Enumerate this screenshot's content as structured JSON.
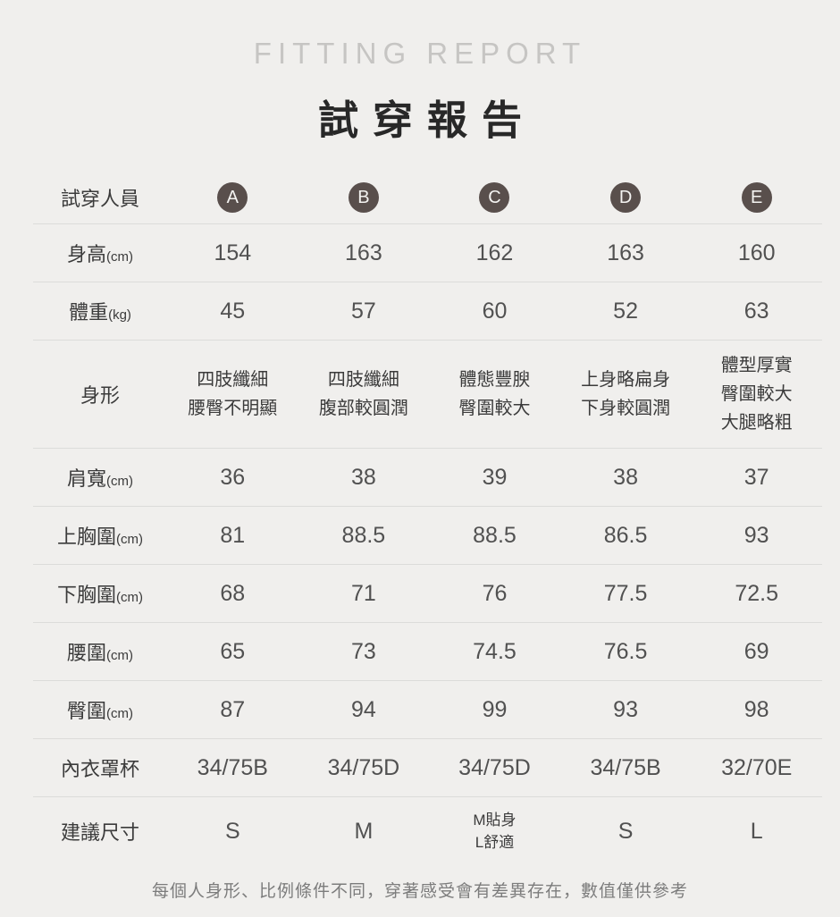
{
  "title": {
    "en": "FITTING REPORT",
    "zh": "試穿報告"
  },
  "colors": {
    "background": "#f0efed",
    "badge_circle": "#594f4c",
    "badge_letter": "#f4f3f1",
    "divider": "#dcdcda",
    "title_en_gray": "#c6c5c3",
    "title_zh_dark": "#282828",
    "label_text": "#3b3b3b",
    "value_text": "#515151",
    "footer_gray": "#7c7c7c"
  },
  "table": {
    "header": {
      "label": "試穿人員",
      "members": [
        "A",
        "B",
        "C",
        "D",
        "E"
      ]
    },
    "rows": [
      {
        "label": "身高",
        "unit": "(cm)",
        "values": [
          "154",
          "163",
          "162",
          "163",
          "160"
        ]
      },
      {
        "label": "體重",
        "unit": "(kg)",
        "values": [
          "45",
          "57",
          "60",
          "52",
          "63"
        ]
      },
      {
        "label": "身形",
        "unit": "",
        "values": [
          [
            "四肢纖細",
            "腰臀不明顯"
          ],
          [
            "四肢纖細",
            "腹部較圓潤"
          ],
          [
            "體態豐腴",
            "臀圍較大"
          ],
          [
            "上身略扁身",
            "下身較圓潤"
          ],
          [
            "體型厚實",
            "臀圍較大",
            "大腿略粗"
          ]
        ]
      },
      {
        "label": "肩寬",
        "unit": "(cm)",
        "values": [
          "36",
          "38",
          "39",
          "38",
          "37"
        ]
      },
      {
        "label": "上胸圍",
        "unit": "(cm)",
        "values": [
          "81",
          "88.5",
          "88.5",
          "86.5",
          "93"
        ]
      },
      {
        "label": "下胸圍",
        "unit": "(cm)",
        "values": [
          "68",
          "71",
          "76",
          "77.5",
          "72.5"
        ]
      },
      {
        "label": "腰圍",
        "unit": "(cm)",
        "values": [
          "65",
          "73",
          "74.5",
          "76.5",
          "69"
        ]
      },
      {
        "label": "臀圍",
        "unit": "(cm)",
        "values": [
          "87",
          "94",
          "99",
          "93",
          "98"
        ]
      },
      {
        "label": "內衣罩杯",
        "unit": "",
        "values": [
          "34/75B",
          "34/75D",
          "34/75D",
          "34/75B",
          "32/70E"
        ]
      },
      {
        "label": "建議尺寸",
        "unit": "",
        "values": [
          "S",
          "M",
          [
            "M貼身",
            "L舒適"
          ],
          "S",
          "L"
        ]
      }
    ]
  },
  "footer": {
    "note": "每個人身形、比例條件不同，穿著感受會有差異存在，數值僅供參考"
  }
}
